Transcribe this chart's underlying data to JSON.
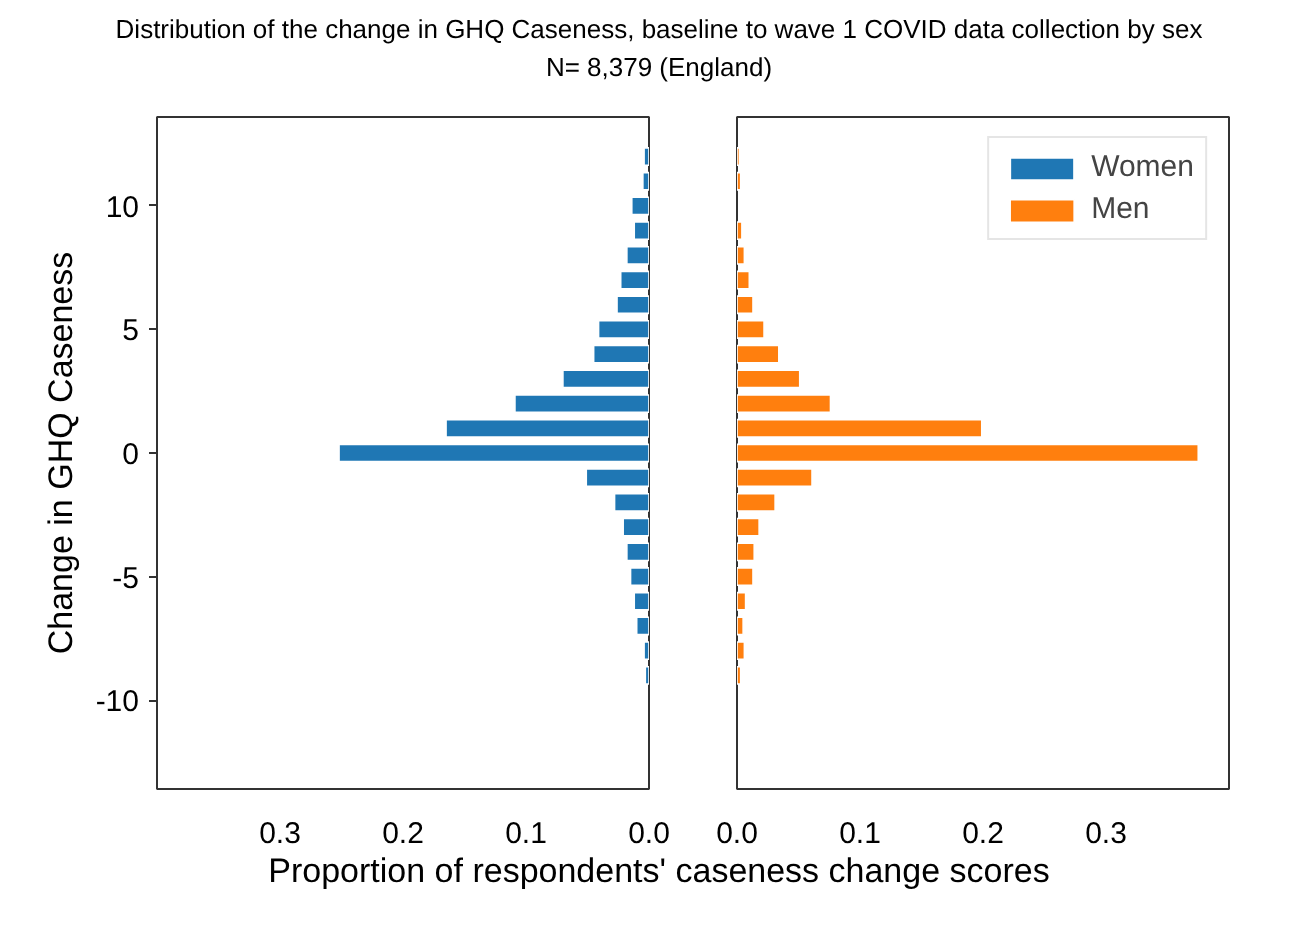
{
  "chart_data": [
    {
      "type": "bar",
      "orientation": "horizontal",
      "title": "Distribution of the change in GHQ Caseness, baseline to wave 1 COVID data collection by sex",
      "subtitle": "N= 8,379 (England)",
      "xlabel": "Proportion of respondents' caseness change scores",
      "ylabel": "Change in GHQ Caseness",
      "x": [
        12,
        11,
        10,
        9,
        8,
        7,
        6,
        5,
        4,
        3,
        2,
        1,
        0,
        -1,
        -2,
        -3,
        -4,
        -5,
        -6,
        -7,
        -8,
        -9
      ],
      "series": [
        {
          "name": "Women",
          "color": "#1f77b4",
          "values": [
            0.004,
            0.005,
            0.014,
            0.012,
            0.018,
            0.023,
            0.026,
            0.041,
            0.045,
            0.07,
            0.109,
            0.165,
            0.252,
            0.051,
            0.028,
            0.021,
            0.018,
            0.015,
            0.012,
            0.01,
            0.004,
            0.003
          ]
        }
      ],
      "xlim": [
        0.4,
        0.0
      ],
      "xticks": [
        0.3,
        0.2,
        0.1,
        {
          "value": 0,
          "label": "0.0"
        }
      ],
      "ylim": [
        -13.6,
        13.6
      ],
      "yticks": [
        -10,
        -5,
        0,
        5,
        10
      ],
      "grid": false
    },
    {
      "type": "bar",
      "orientation": "horizontal",
      "x": [
        12,
        11,
        10,
        9,
        8,
        7,
        6,
        5,
        4,
        3,
        2,
        1,
        0,
        -1,
        -2,
        -3,
        -4,
        -5,
        -6,
        -7,
        -8,
        -9
      ],
      "series": [
        {
          "name": "Men",
          "color": "#ff7f0e",
          "values": [
            0.002,
            0.003,
            null,
            0.004,
            0.006,
            0.01,
            0.013,
            0.022,
            0.034,
            0.051,
            0.076,
            0.199,
            0.375,
            0.061,
            0.031,
            0.018,
            0.014,
            0.013,
            0.007,
            0.005,
            0.006,
            0.003
          ]
        }
      ],
      "xlim": [
        0.0,
        0.4
      ],
      "xticks": [
        {
          "value": 0,
          "label": "0.0"
        },
        0.1,
        0.2,
        0.3
      ],
      "ylim": [
        -13.6,
        13.6
      ],
      "yticks": [
        -10,
        -5,
        0,
        5,
        10
      ],
      "grid": false,
      "tick_labels": "x",
      "legend": "top right"
    }
  ]
}
